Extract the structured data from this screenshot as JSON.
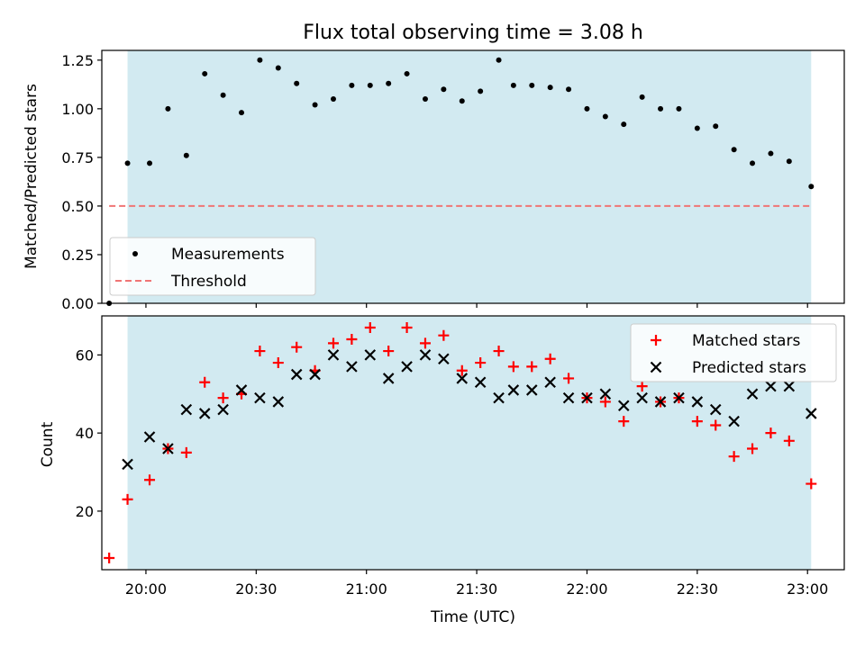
{
  "chart_data": [
    {
      "type": "scatter",
      "title": "Flux total observing time = 3.08 h",
      "xlabel": "",
      "ylabel": "Matched/Predicted stars",
      "ylim": [
        0,
        1.3
      ],
      "xlim": [
        "19:48",
        "23:10"
      ],
      "yticks": [
        "0.00",
        "0.25",
        "0.50",
        "0.75",
        "1.00",
        "1.25"
      ],
      "observing_window": [
        "19:55",
        "23:01"
      ],
      "series": [
        {
          "name": "Measurements",
          "color": "#000000",
          "marker": "dot",
          "points": [
            [
              "19:50",
              0.0
            ],
            [
              "19:55",
              0.72
            ],
            [
              "20:01",
              0.72
            ],
            [
              "20:06",
              1.0
            ],
            [
              "20:11",
              0.76
            ],
            [
              "20:16",
              1.18
            ],
            [
              "20:21",
              1.07
            ],
            [
              "20:26",
              0.98
            ],
            [
              "20:31",
              1.25
            ],
            [
              "20:36",
              1.21
            ],
            [
              "20:41",
              1.13
            ],
            [
              "20:46",
              1.02
            ],
            [
              "20:51",
              1.05
            ],
            [
              "20:56",
              1.12
            ],
            [
              "21:01",
              1.12
            ],
            [
              "21:06",
              1.13
            ],
            [
              "21:11",
              1.18
            ],
            [
              "21:16",
              1.05
            ],
            [
              "21:21",
              1.1
            ],
            [
              "21:26",
              1.04
            ],
            [
              "21:31",
              1.09
            ],
            [
              "21:36",
              1.25
            ],
            [
              "21:40",
              1.12
            ],
            [
              "21:45",
              1.12
            ],
            [
              "21:50",
              1.11
            ],
            [
              "21:55",
              1.1
            ],
            [
              "22:00",
              1.0
            ],
            [
              "22:05",
              0.96
            ],
            [
              "22:10",
              0.92
            ],
            [
              "22:15",
              1.06
            ],
            [
              "22:20",
              1.0
            ],
            [
              "22:25",
              1.0
            ],
            [
              "22:30",
              0.9
            ],
            [
              "22:35",
              0.91
            ],
            [
              "22:40",
              0.79
            ],
            [
              "22:45",
              0.72
            ],
            [
              "22:50",
              0.77
            ],
            [
              "22:55",
              0.73
            ],
            [
              "23:01",
              0.6
            ]
          ]
        },
        {
          "name": "Threshold",
          "color": "#f07575",
          "marker": "dashed-line",
          "points": [
            [
              "19:50",
              0.5
            ],
            [
              "23:01",
              0.5
            ]
          ]
        }
      ],
      "legend_position": "lower-left"
    },
    {
      "type": "scatter",
      "title": "",
      "xlabel": "Time (UTC)",
      "ylabel": "Count",
      "ylim": [
        5,
        70
      ],
      "xlim": [
        "19:48",
        "23:10"
      ],
      "yticks": [
        "20",
        "40",
        "60"
      ],
      "xticks": [
        "20:00",
        "20:30",
        "21:00",
        "21:30",
        "22:00",
        "22:30",
        "23:00"
      ],
      "observing_window": [
        "19:55",
        "23:01"
      ],
      "series": [
        {
          "name": "Matched stars",
          "color": "#ff0000",
          "marker": "plus",
          "points": [
            [
              "19:50",
              8
            ],
            [
              "19:55",
              23
            ],
            [
              "20:01",
              28
            ],
            [
              "20:06",
              36
            ],
            [
              "20:11",
              35
            ],
            [
              "20:16",
              53
            ],
            [
              "20:21",
              49
            ],
            [
              "20:26",
              50
            ],
            [
              "20:31",
              61
            ],
            [
              "20:36",
              58
            ],
            [
              "20:41",
              62
            ],
            [
              "20:46",
              56
            ],
            [
              "20:51",
              63
            ],
            [
              "20:56",
              64
            ],
            [
              "21:01",
              67
            ],
            [
              "21:06",
              61
            ],
            [
              "21:11",
              67
            ],
            [
              "21:16",
              63
            ],
            [
              "21:21",
              65
            ],
            [
              "21:26",
              56
            ],
            [
              "21:31",
              58
            ],
            [
              "21:36",
              61
            ],
            [
              "21:40",
              57
            ],
            [
              "21:45",
              57
            ],
            [
              "21:50",
              59
            ],
            [
              "21:55",
              54
            ],
            [
              "22:00",
              49
            ],
            [
              "22:05",
              48
            ],
            [
              "22:10",
              43
            ],
            [
              "22:15",
              52
            ],
            [
              "22:20",
              48
            ],
            [
              "22:25",
              49
            ],
            [
              "22:30",
              43
            ],
            [
              "22:35",
              42
            ],
            [
              "22:40",
              34
            ],
            [
              "22:45",
              36
            ],
            [
              "22:50",
              40
            ],
            [
              "22:55",
              38
            ],
            [
              "23:01",
              27
            ]
          ]
        },
        {
          "name": "Predicted stars",
          "color": "#000000",
          "marker": "x",
          "points": [
            [
              "19:55",
              32
            ],
            [
              "20:01",
              39
            ],
            [
              "20:06",
              36
            ],
            [
              "20:11",
              46
            ],
            [
              "20:16",
              45
            ],
            [
              "20:21",
              46
            ],
            [
              "20:26",
              51
            ],
            [
              "20:31",
              49
            ],
            [
              "20:36",
              48
            ],
            [
              "20:41",
              55
            ],
            [
              "20:46",
              55
            ],
            [
              "20:51",
              60
            ],
            [
              "20:56",
              57
            ],
            [
              "21:01",
              60
            ],
            [
              "21:06",
              54
            ],
            [
              "21:11",
              57
            ],
            [
              "21:16",
              60
            ],
            [
              "21:21",
              59
            ],
            [
              "21:26",
              54
            ],
            [
              "21:31",
              53
            ],
            [
              "21:36",
              49
            ],
            [
              "21:40",
              51
            ],
            [
              "21:45",
              51
            ],
            [
              "21:50",
              53
            ],
            [
              "21:55",
              49
            ],
            [
              "22:00",
              49
            ],
            [
              "22:05",
              50
            ],
            [
              "22:10",
              47
            ],
            [
              "22:15",
              49
            ],
            [
              "22:20",
              48
            ],
            [
              "22:25",
              49
            ],
            [
              "22:30",
              48
            ],
            [
              "22:35",
              46
            ],
            [
              "22:40",
              43
            ],
            [
              "22:45",
              50
            ],
            [
              "22:50",
              52
            ],
            [
              "22:55",
              52
            ],
            [
              "23:01",
              45
            ]
          ]
        }
      ],
      "legend_position": "upper-right"
    }
  ],
  "colors": {
    "shade": "#add8e6"
  }
}
